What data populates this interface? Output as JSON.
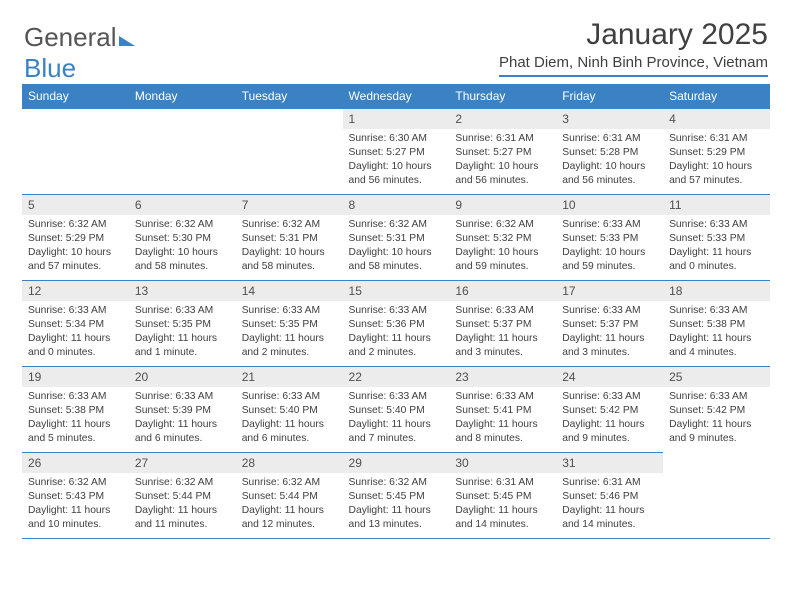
{
  "logo": {
    "text1": "General",
    "text2": "Blue"
  },
  "header": {
    "month_title": "January 2025",
    "location": "Phat Diem, Ninh Binh Province, Vietnam"
  },
  "colors": {
    "accent": "#3b82c4",
    "header_bg": "#3b82c4",
    "header_text": "#ffffff",
    "daynum_bg": "#ececec",
    "body_text": "#404040",
    "background": "#ffffff"
  },
  "weekdays": [
    "Sunday",
    "Monday",
    "Tuesday",
    "Wednesday",
    "Thursday",
    "Friday",
    "Saturday"
  ],
  "weeks": [
    [
      {
        "blank": true
      },
      {
        "blank": true
      },
      {
        "blank": true
      },
      {
        "day": "1",
        "sunrise": "Sunrise: 6:30 AM",
        "sunset": "Sunset: 5:27 PM",
        "daylight": "Daylight: 10 hours and 56 minutes."
      },
      {
        "day": "2",
        "sunrise": "Sunrise: 6:31 AM",
        "sunset": "Sunset: 5:27 PM",
        "daylight": "Daylight: 10 hours and 56 minutes."
      },
      {
        "day": "3",
        "sunrise": "Sunrise: 6:31 AM",
        "sunset": "Sunset: 5:28 PM",
        "daylight": "Daylight: 10 hours and 56 minutes."
      },
      {
        "day": "4",
        "sunrise": "Sunrise: 6:31 AM",
        "sunset": "Sunset: 5:29 PM",
        "daylight": "Daylight: 10 hours and 57 minutes."
      }
    ],
    [
      {
        "day": "5",
        "sunrise": "Sunrise: 6:32 AM",
        "sunset": "Sunset: 5:29 PM",
        "daylight": "Daylight: 10 hours and 57 minutes."
      },
      {
        "day": "6",
        "sunrise": "Sunrise: 6:32 AM",
        "sunset": "Sunset: 5:30 PM",
        "daylight": "Daylight: 10 hours and 58 minutes."
      },
      {
        "day": "7",
        "sunrise": "Sunrise: 6:32 AM",
        "sunset": "Sunset: 5:31 PM",
        "daylight": "Daylight: 10 hours and 58 minutes."
      },
      {
        "day": "8",
        "sunrise": "Sunrise: 6:32 AM",
        "sunset": "Sunset: 5:31 PM",
        "daylight": "Daylight: 10 hours and 58 minutes."
      },
      {
        "day": "9",
        "sunrise": "Sunrise: 6:32 AM",
        "sunset": "Sunset: 5:32 PM",
        "daylight": "Daylight: 10 hours and 59 minutes."
      },
      {
        "day": "10",
        "sunrise": "Sunrise: 6:33 AM",
        "sunset": "Sunset: 5:33 PM",
        "daylight": "Daylight: 10 hours and 59 minutes."
      },
      {
        "day": "11",
        "sunrise": "Sunrise: 6:33 AM",
        "sunset": "Sunset: 5:33 PM",
        "daylight": "Daylight: 11 hours and 0 minutes."
      }
    ],
    [
      {
        "day": "12",
        "sunrise": "Sunrise: 6:33 AM",
        "sunset": "Sunset: 5:34 PM",
        "daylight": "Daylight: 11 hours and 0 minutes."
      },
      {
        "day": "13",
        "sunrise": "Sunrise: 6:33 AM",
        "sunset": "Sunset: 5:35 PM",
        "daylight": "Daylight: 11 hours and 1 minute."
      },
      {
        "day": "14",
        "sunrise": "Sunrise: 6:33 AM",
        "sunset": "Sunset: 5:35 PM",
        "daylight": "Daylight: 11 hours and 2 minutes."
      },
      {
        "day": "15",
        "sunrise": "Sunrise: 6:33 AM",
        "sunset": "Sunset: 5:36 PM",
        "daylight": "Daylight: 11 hours and 2 minutes."
      },
      {
        "day": "16",
        "sunrise": "Sunrise: 6:33 AM",
        "sunset": "Sunset: 5:37 PM",
        "daylight": "Daylight: 11 hours and 3 minutes."
      },
      {
        "day": "17",
        "sunrise": "Sunrise: 6:33 AM",
        "sunset": "Sunset: 5:37 PM",
        "daylight": "Daylight: 11 hours and 3 minutes."
      },
      {
        "day": "18",
        "sunrise": "Sunrise: 6:33 AM",
        "sunset": "Sunset: 5:38 PM",
        "daylight": "Daylight: 11 hours and 4 minutes."
      }
    ],
    [
      {
        "day": "19",
        "sunrise": "Sunrise: 6:33 AM",
        "sunset": "Sunset: 5:38 PM",
        "daylight": "Daylight: 11 hours and 5 minutes."
      },
      {
        "day": "20",
        "sunrise": "Sunrise: 6:33 AM",
        "sunset": "Sunset: 5:39 PM",
        "daylight": "Daylight: 11 hours and 6 minutes."
      },
      {
        "day": "21",
        "sunrise": "Sunrise: 6:33 AM",
        "sunset": "Sunset: 5:40 PM",
        "daylight": "Daylight: 11 hours and 6 minutes."
      },
      {
        "day": "22",
        "sunrise": "Sunrise: 6:33 AM",
        "sunset": "Sunset: 5:40 PM",
        "daylight": "Daylight: 11 hours and 7 minutes."
      },
      {
        "day": "23",
        "sunrise": "Sunrise: 6:33 AM",
        "sunset": "Sunset: 5:41 PM",
        "daylight": "Daylight: 11 hours and 8 minutes."
      },
      {
        "day": "24",
        "sunrise": "Sunrise: 6:33 AM",
        "sunset": "Sunset: 5:42 PM",
        "daylight": "Daylight: 11 hours and 9 minutes."
      },
      {
        "day": "25",
        "sunrise": "Sunrise: 6:33 AM",
        "sunset": "Sunset: 5:42 PM",
        "daylight": "Daylight: 11 hours and 9 minutes."
      }
    ],
    [
      {
        "day": "26",
        "sunrise": "Sunrise: 6:32 AM",
        "sunset": "Sunset: 5:43 PM",
        "daylight": "Daylight: 11 hours and 10 minutes."
      },
      {
        "day": "27",
        "sunrise": "Sunrise: 6:32 AM",
        "sunset": "Sunset: 5:44 PM",
        "daylight": "Daylight: 11 hours and 11 minutes."
      },
      {
        "day": "28",
        "sunrise": "Sunrise: 6:32 AM",
        "sunset": "Sunset: 5:44 PM",
        "daylight": "Daylight: 11 hours and 12 minutes."
      },
      {
        "day": "29",
        "sunrise": "Sunrise: 6:32 AM",
        "sunset": "Sunset: 5:45 PM",
        "daylight": "Daylight: 11 hours and 13 minutes."
      },
      {
        "day": "30",
        "sunrise": "Sunrise: 6:31 AM",
        "sunset": "Sunset: 5:45 PM",
        "daylight": "Daylight: 11 hours and 14 minutes."
      },
      {
        "day": "31",
        "sunrise": "Sunrise: 6:31 AM",
        "sunset": "Sunset: 5:46 PM",
        "daylight": "Daylight: 11 hours and 14 minutes."
      },
      {
        "blank": true
      }
    ]
  ]
}
